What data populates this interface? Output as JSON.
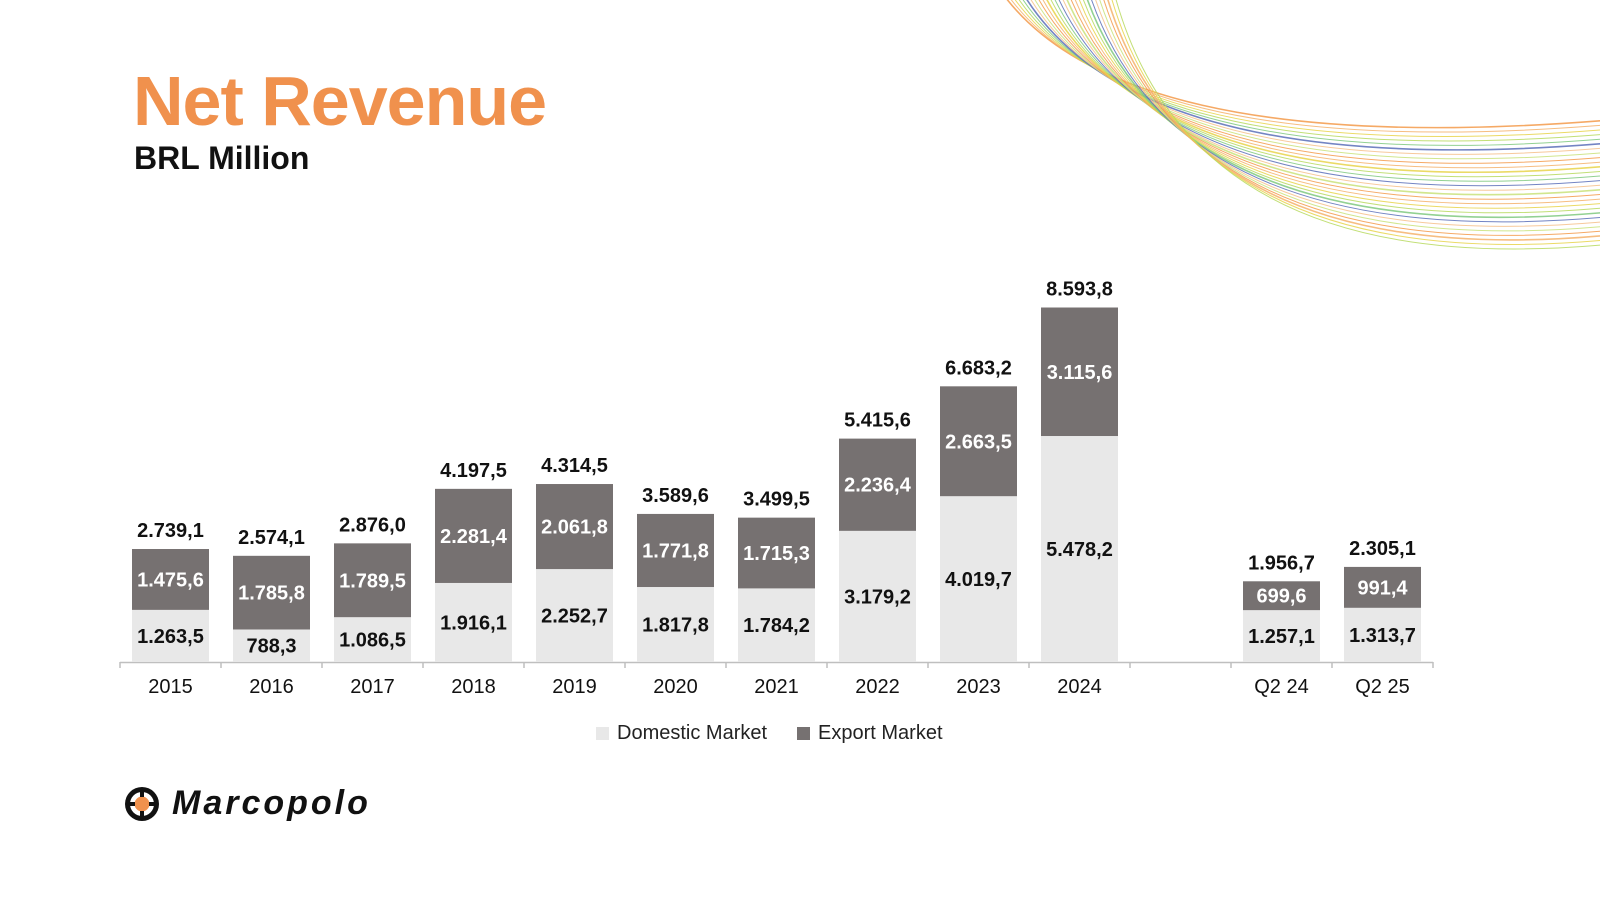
{
  "title": "Net Revenue",
  "subtitle": "BRL Million",
  "brand": {
    "name": "Marcopolo",
    "accent_color": "#F0914D",
    "arc_colors": [
      "#F39A4A",
      "#F5B26B",
      "#E8D34A",
      "#B7D95E",
      "#7FC97F",
      "#5B6FB8",
      "#F6C08A",
      "#C9E27A"
    ]
  },
  "chart_data": {
    "type": "bar",
    "stacked": true,
    "title": "Net Revenue",
    "subtitle": "BRL Million",
    "categories": [
      "2015",
      "2016",
      "2017",
      "2018",
      "2019",
      "2020",
      "2021",
      "2022",
      "2023",
      "2024",
      "",
      "Q2 24",
      "Q2 25"
    ],
    "series": [
      {
        "name": "Domestic Market",
        "color": "#E8E8E8",
        "label_color": "#111111",
        "values": [
          1263.5,
          788.3,
          1086.5,
          1916.1,
          2252.7,
          1817.8,
          1784.2,
          3179.2,
          4019.7,
          5478.2,
          null,
          1257.1,
          1313.7
        ],
        "labels": [
          "1.263,5",
          "788,3",
          "1.086,5",
          "1.916,1",
          "2.252,7",
          "1.817,8",
          "1.784,2",
          "3.179,2",
          "4.019,7",
          "5.478,2",
          null,
          "1.257,1",
          "1.313,7"
        ]
      },
      {
        "name": "Export Market",
        "color": "#767171",
        "label_color": "#FFFFFF",
        "values": [
          1475.6,
          1785.8,
          1789.5,
          2281.4,
          2061.8,
          1771.8,
          1715.3,
          2236.4,
          2663.5,
          3115.6,
          null,
          699.6,
          991.4
        ],
        "labels": [
          "1.475,6",
          "1.785,8",
          "1.789,5",
          "2.281,4",
          "2.061,8",
          "1.771,8",
          "1.715,3",
          "2.236,4",
          "2.663,5",
          "3.115,6",
          null,
          "699,6",
          "991,4"
        ]
      }
    ],
    "totals": [
      2739.1,
      2574.1,
      2876.0,
      4197.5,
      4314.5,
      3589.6,
      3499.5,
      5415.6,
      6683.2,
      8593.8,
      null,
      1956.7,
      2305.1
    ],
    "total_labels": [
      "2.739,1",
      "2.574,1",
      "2.876,0",
      "4.197,5",
      "4.314,5",
      "3.589,6",
      "3.499,5",
      "5.415,6",
      "6.683,2",
      "8.593,8",
      null,
      "1.956,7",
      "2.305,1"
    ],
    "value_display": {
      "2016": {
        "domestic": 788.3,
        "export": 1785.8
      },
      "Q2 24": {
        "domestic": 1257.1,
        "export": 699.6
      },
      "Q2 25": {
        "domestic": 1313.7,
        "export": 991.4
      }
    },
    "xlabel": "",
    "ylabel": "",
    "grid": false,
    "legend": {
      "position": "bottom",
      "entries": [
        "Domestic Market",
        "Export Market"
      ]
    }
  }
}
